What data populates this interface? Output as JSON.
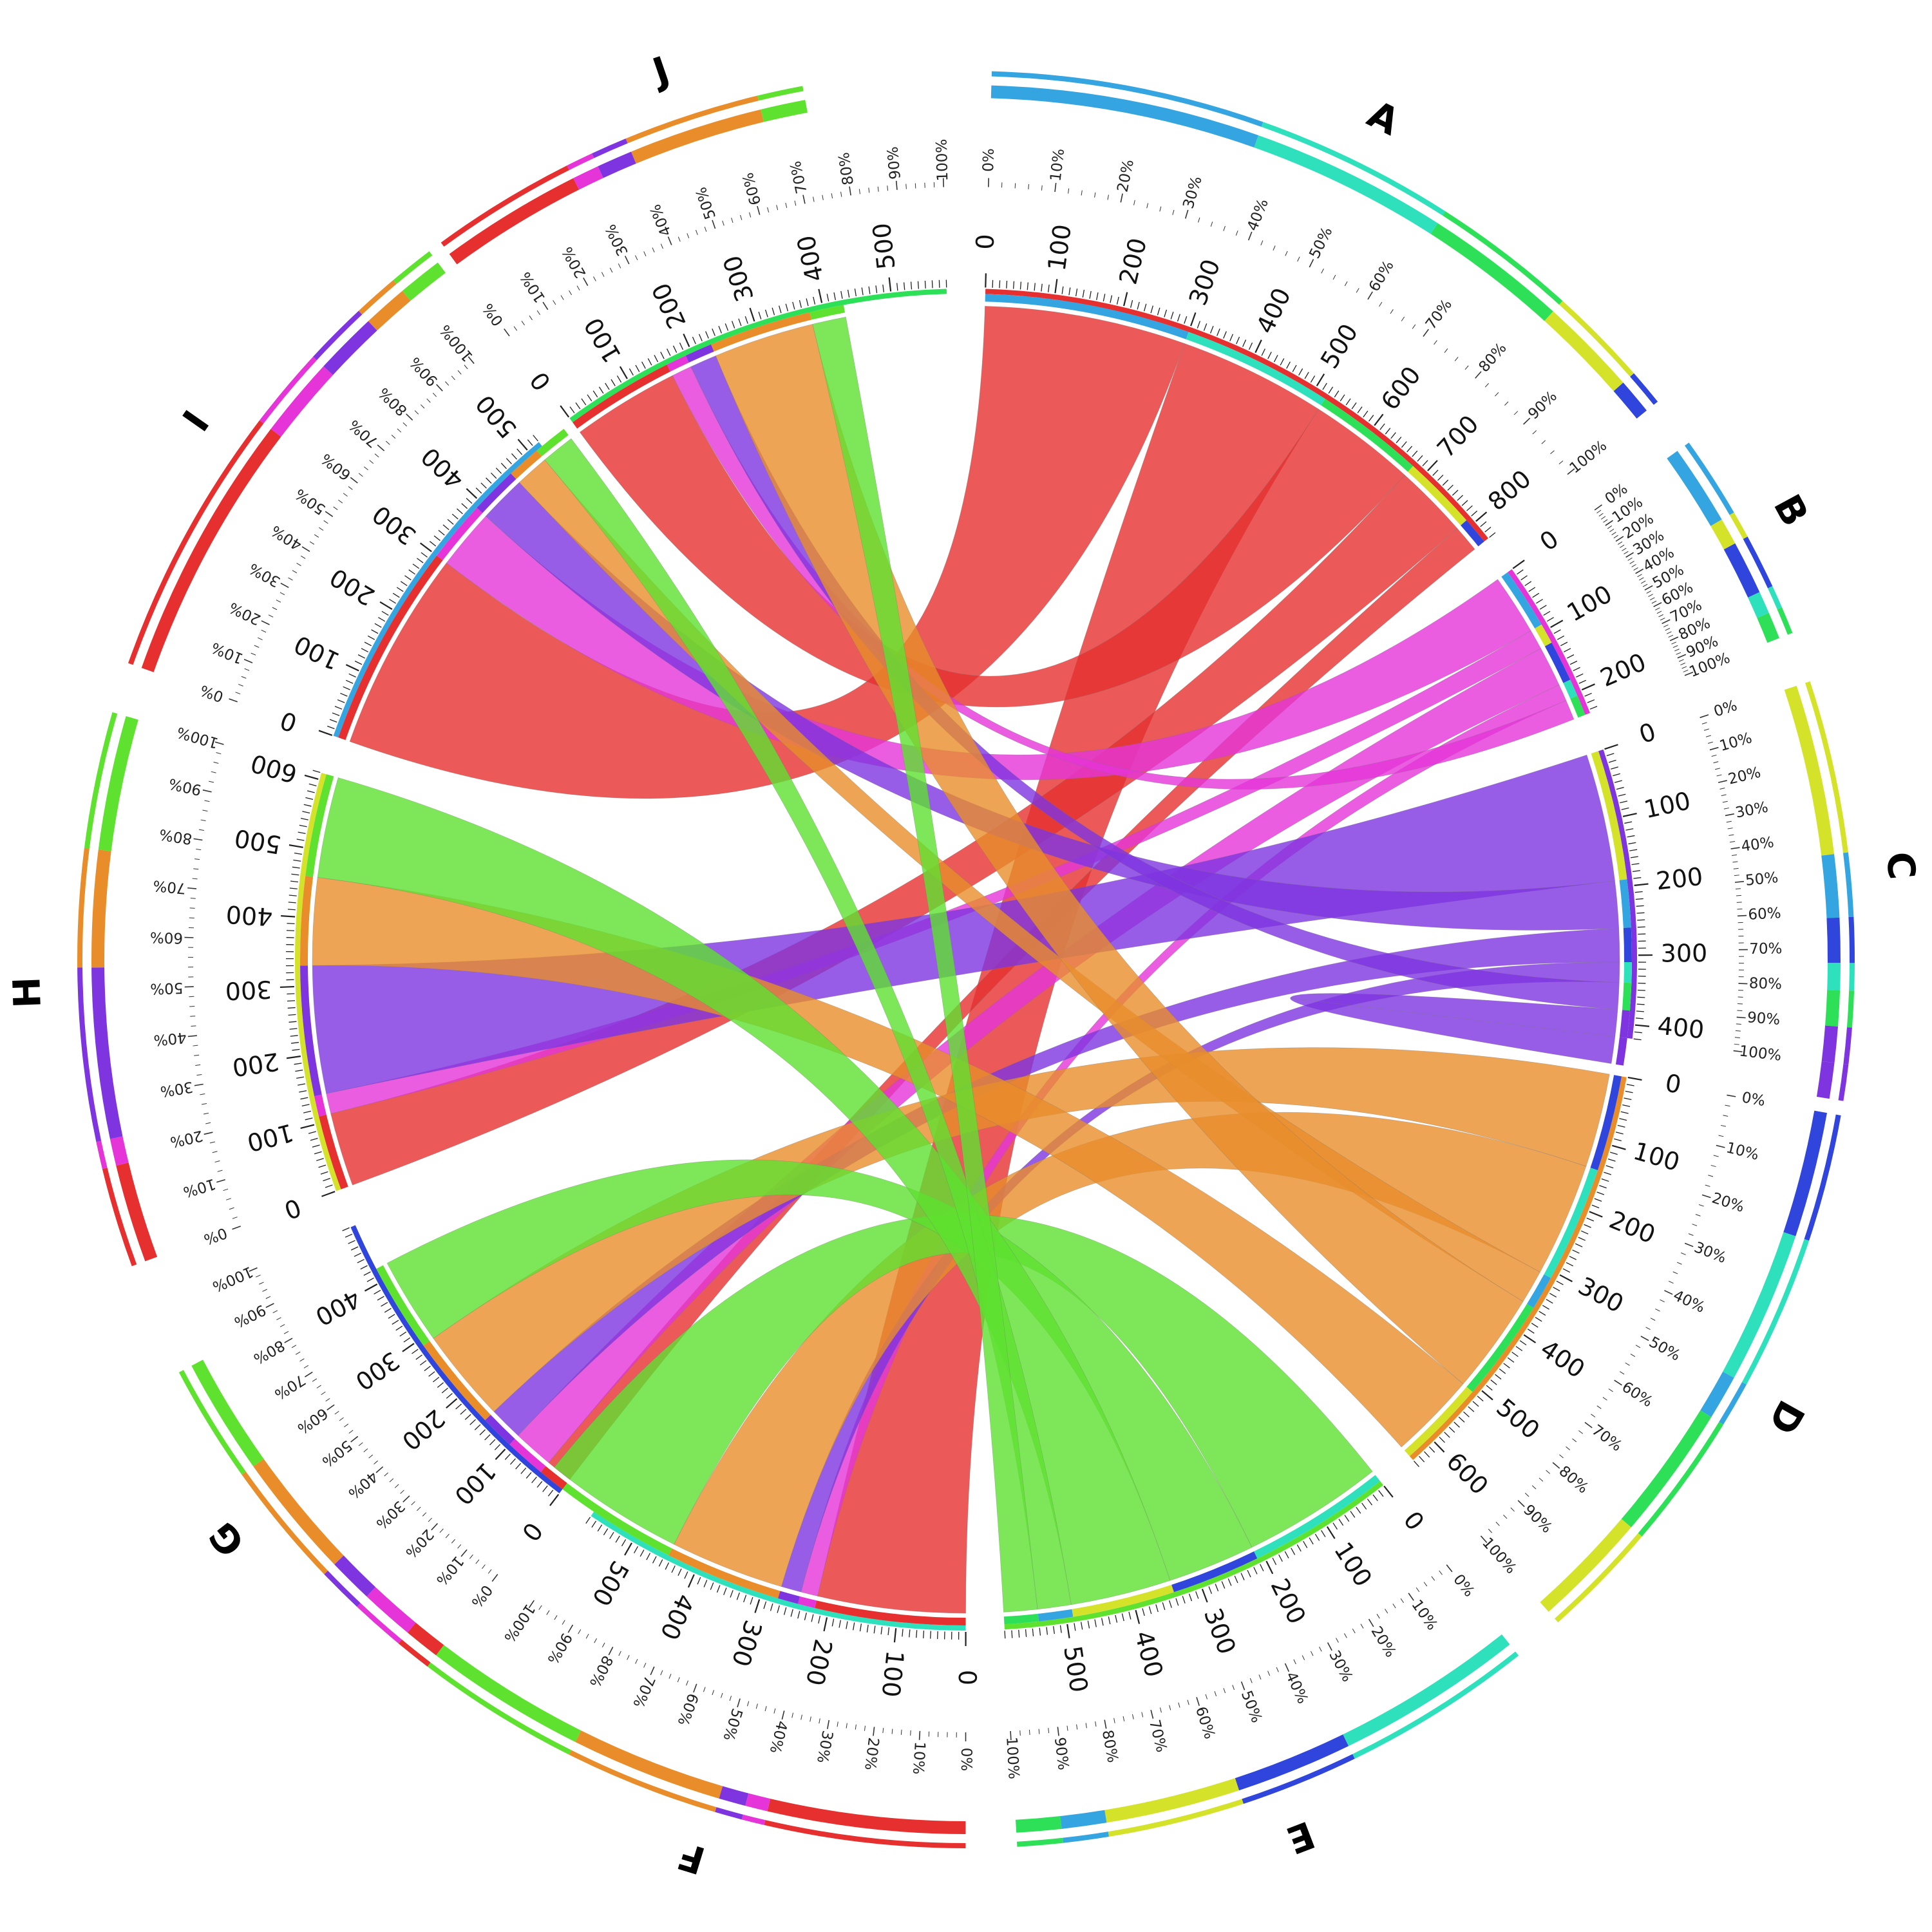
{
  "chart_data": {
    "type": "chord",
    "title": "",
    "percent_labels": [
      "0%",
      "10%",
      "20%",
      "30%",
      "40%",
      "50%",
      "60%",
      "70%",
      "80%",
      "90%",
      "100%"
    ],
    "segments": [
      {
        "name": "A",
        "color": "#e63030",
        "total": 830,
        "tick_labels": [
          "0",
          "100",
          "200",
          "300",
          "400",
          "500",
          "600",
          "700",
          "800"
        ]
      },
      {
        "name": "B",
        "color": "#e535d8",
        "total": 235,
        "tick_labels": [
          "0",
          "100",
          "200"
        ]
      },
      {
        "name": "C",
        "color": "#7e35e0",
        "total": 420,
        "tick_labels": [
          "0",
          "100",
          "200",
          "300",
          "400"
        ]
      },
      {
        "name": "D",
        "color": "#e88d2a",
        "total": 640,
        "tick_labels": [
          "0",
          "100",
          "200",
          "300",
          "400",
          "500",
          "600"
        ]
      },
      {
        "name": "E",
        "color": "#5ee12f",
        "total": 590,
        "tick_labels": [
          "0",
          "100",
          "200",
          "300",
          "400",
          "500"
        ]
      },
      {
        "name": "F",
        "color": "#2fe0bc",
        "total": 570,
        "tick_labels": [
          "0",
          "100",
          "200",
          "300",
          "400",
          "500"
        ]
      },
      {
        "name": "G",
        "color": "#2f45dc",
        "total": 490,
        "tick_labels": [
          "0",
          "100",
          "200",
          "300",
          "400"
        ]
      },
      {
        "name": "H",
        "color": "#d4e22a",
        "total": 610,
        "tick_labels": [
          "0",
          "100",
          "200",
          "300",
          "400",
          "500",
          "600"
        ]
      },
      {
        "name": "I",
        "color": "#35a5e2",
        "total": 520,
        "tick_labels": [
          "0",
          "100",
          "200",
          "300",
          "400",
          "500"
        ]
      },
      {
        "name": "J",
        "color": "#2ee057",
        "total": 580,
        "tick_labels": [
          "0",
          "100",
          "200",
          "300",
          "400",
          "500"
        ]
      }
    ],
    "flows": [
      {
        "from": "A",
        "to": "I",
        "value": 300
      },
      {
        "from": "A",
        "to": "F",
        "value": 220
      },
      {
        "from": "A",
        "to": "J",
        "value": 160
      },
      {
        "from": "A",
        "to": "H",
        "value": 110
      },
      {
        "from": "A",
        "to": "G",
        "value": 40
      },
      {
        "from": "B",
        "to": "I",
        "value": 90
      },
      {
        "from": "B",
        "to": "H",
        "value": 30
      },
      {
        "from": "B",
        "to": "G",
        "value": 60
      },
      {
        "from": "B",
        "to": "F",
        "value": 25
      },
      {
        "from": "B",
        "to": "J",
        "value": 30
      },
      {
        "from": "C",
        "to": "H",
        "value": 190
      },
      {
        "from": "C",
        "to": "I",
        "value": 70
      },
      {
        "from": "C",
        "to": "G",
        "value": 50
      },
      {
        "from": "C",
        "to": "F",
        "value": 30
      },
      {
        "from": "C",
        "to": "J",
        "value": 40
      },
      {
        "from": "C",
        "to": "C",
        "value": 40
      },
      {
        "from": "D",
        "to": "G",
        "value": 140
      },
      {
        "from": "D",
        "to": "F",
        "value": 170
      },
      {
        "from": "D",
        "to": "I",
        "value": 50
      },
      {
        "from": "D",
        "to": "J",
        "value": 150
      },
      {
        "from": "D",
        "to": "H",
        "value": 130
      },
      {
        "from": "E",
        "to": "F",
        "value": 210
      },
      {
        "from": "E",
        "to": "G",
        "value": 130
      },
      {
        "from": "E",
        "to": "H",
        "value": 150
      },
      {
        "from": "E",
        "to": "I",
        "value": 50
      },
      {
        "from": "E",
        "to": "J",
        "value": 50
      }
    ]
  }
}
